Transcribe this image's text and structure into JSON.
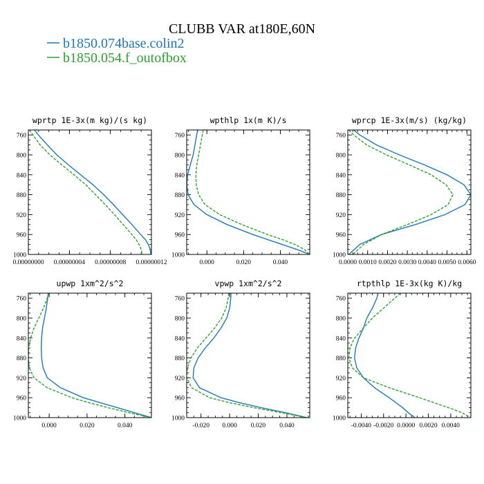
{
  "figure": {
    "title": "CLUBB VAR at180E,60N",
    "legend": [
      {
        "label": "b1850.074base.colin2",
        "color": "#1f77b4"
      },
      {
        "label": "b1850.054.f_outofbox",
        "color": "#2ca02c"
      }
    ]
  },
  "chart_data": [
    {
      "type": "line",
      "title": "wprtp  1E-3x(m kg)/(s kg)",
      "ylim": [
        1000,
        750
      ],
      "yticks": [
        760,
        800,
        840,
        880,
        920,
        960,
        1000
      ],
      "xlim": [
        0.0,
        1.2e-07
      ],
      "xticks": [
        0.0,
        4e-08,
        8e-08,
        1.2e-07
      ],
      "xtick_labels": [
        "0.00000000",
        "0.00000004",
        "0.00000008",
        "0.00000012"
      ],
      "y": [
        750,
        760,
        780,
        800,
        820,
        840,
        860,
        880,
        900,
        920,
        940,
        960,
        970,
        980,
        990,
        1000
      ],
      "series": [
        {
          "name": "b1850.074base.colin2",
          "color": "#1f77b4",
          "dash": "none",
          "x": [
            6e-09,
            9.8e-09,
            1.85e-08,
            2.78e-08,
            3.9e-08,
            5.1e-08,
            6.3e-08,
            7.35e-08,
            8.3e-08,
            9.2e-08,
            1.01e-07,
            1.095e-07,
            1.14e-07,
            1.17e-07,
            1.188e-07,
            1.195e-07
          ]
        },
        {
          "name": "b1850.054.f_outofbox",
          "color": "#2ca02c",
          "dash": "4,2",
          "x": [
            1e-09,
            4.5e-09,
            1.15e-08,
            2.1e-08,
            3.25e-08,
            4.45e-08,
            5.6e-08,
            6.55e-08,
            7.5e-08,
            8.4e-08,
            9.25e-08,
            1.01e-07,
            1.05e-07,
            1.08e-07,
            1.1e-07,
            1.108e-07
          ]
        }
      ]
    },
    {
      "type": "line",
      "title": "wpthlp  1x(m K)/s",
      "ylim": [
        1000,
        750
      ],
      "yticks": [
        760,
        800,
        840,
        880,
        920,
        960,
        1000
      ],
      "xlim": [
        -0.011,
        0.056
      ],
      "xticks": [
        0.0,
        0.02,
        0.04
      ],
      "xtick_labels": [
        "0.000",
        "0.020",
        "0.040"
      ],
      "y": [
        750,
        760,
        780,
        800,
        820,
        840,
        860,
        880,
        900,
        920,
        940,
        960,
        970,
        980,
        990,
        1000
      ],
      "series": [
        {
          "name": "b1850.074base.colin2",
          "color": "#1f77b4",
          "dash": "none",
          "x": [
            -0.005,
            -0.0056,
            -0.0065,
            -0.0075,
            -0.009,
            -0.0105,
            -0.011,
            -0.0102,
            -0.007,
            0.0,
            0.011,
            0.025,
            0.033,
            0.041,
            0.049,
            0.056
          ]
        },
        {
          "name": "b1850.054.f_outofbox",
          "color": "#2ca02c",
          "dash": "4,2",
          "x": [
            -0.002,
            -0.0025,
            -0.0035,
            -0.0045,
            -0.0055,
            -0.006,
            -0.0058,
            -0.0045,
            -0.001,
            0.007,
            0.019,
            0.033,
            0.041,
            0.048,
            0.053,
            0.056
          ]
        }
      ]
    },
    {
      "type": "line",
      "title": "wprcp  1E-3x(m/s) (kg/kg)",
      "ylim": [
        1000,
        750
      ],
      "yticks": [
        760,
        800,
        840,
        880,
        920,
        960,
        1000
      ],
      "xlim": [
        0.0,
        0.0062
      ],
      "xticks": [
        0.0,
        0.001,
        0.002,
        0.003,
        0.004,
        0.005,
        0.006
      ],
      "xtick_labels": [
        "0.0000",
        "0.0010",
        "0.0020",
        "0.0030",
        "0.0040",
        "0.0050",
        "0.0060"
      ],
      "y": [
        750,
        760,
        780,
        800,
        820,
        840,
        860,
        880,
        900,
        920,
        940,
        960,
        980,
        1000
      ],
      "series": [
        {
          "name": "b1850.074base.colin2",
          "color": "#1f77b4",
          "dash": "none",
          "x": [
            0.0003,
            0.0006,
            0.00145,
            0.0026,
            0.00385,
            0.005,
            0.00585,
            0.0062,
            0.0059,
            0.0049,
            0.0034,
            0.0017,
            0.0006,
            5e-05
          ]
        },
        {
          "name": "b1850.054.f_outofbox",
          "color": "#2ca02c",
          "dash": "4,2",
          "x": [
            5e-05,
            0.0003,
            0.00095,
            0.00195,
            0.0031,
            0.0042,
            0.00495,
            0.0053,
            0.00505,
            0.0042,
            0.003,
            0.0017,
            0.0008,
            0.00025
          ]
        }
      ]
    },
    {
      "type": "line",
      "title": "upwp  1xm^2/s^2",
      "ylim": [
        1000,
        750
      ],
      "yticks": [
        760,
        800,
        840,
        880,
        920,
        960,
        1000
      ],
      "xlim": [
        -0.011,
        0.054
      ],
      "xticks": [
        0.0,
        0.02,
        0.04
      ],
      "xtick_labels": [
        "0.000",
        "0.020",
        "0.040"
      ],
      "y": [
        750,
        760,
        780,
        800,
        820,
        840,
        860,
        880,
        900,
        920,
        940,
        960,
        970,
        980,
        990,
        1000
      ],
      "series": [
        {
          "name": "b1850.074base.colin2",
          "color": "#1f77b4",
          "dash": "none",
          "x": [
            -0.0005,
            -0.0008,
            -0.0015,
            -0.0025,
            -0.0035,
            -0.004,
            -0.0042,
            -0.004,
            -0.0032,
            -0.001,
            0.006,
            0.018,
            0.027,
            0.036,
            0.045,
            0.054
          ]
        },
        {
          "name": "b1850.054.f_outofbox",
          "color": "#2ca02c",
          "dash": "4,2",
          "x": [
            -0.0002,
            -0.001,
            -0.003,
            -0.0055,
            -0.008,
            -0.0098,
            -0.0108,
            -0.011,
            -0.0105,
            -0.008,
            -0.001,
            0.012,
            0.021,
            0.031,
            0.042,
            0.054
          ]
        }
      ]
    },
    {
      "type": "line",
      "title": "vpwp  1xm^2/s^2",
      "ylim": [
        1000,
        750
      ],
      "yticks": [
        760,
        800,
        840,
        880,
        920,
        960,
        1000
      ],
      "xlim": [
        -0.03,
        0.056
      ],
      "xticks": [
        -0.02,
        0.0,
        0.02,
        0.04
      ],
      "xtick_labels": [
        "-0.020",
        "0.000",
        "0.020",
        "0.040"
      ],
      "y": [
        750,
        760,
        780,
        800,
        820,
        840,
        860,
        880,
        900,
        920,
        940,
        960,
        970,
        980,
        990,
        1000
      ],
      "series": [
        {
          "name": "b1850.074base.colin2",
          "color": "#1f77b4",
          "dash": "none",
          "x": [
            0.001,
            0.0008,
            0.0,
            -0.002,
            -0.006,
            -0.011,
            -0.017,
            -0.022,
            -0.025,
            -0.0255,
            -0.021,
            -0.006,
            0.007,
            0.022,
            0.039,
            0.054
          ]
        },
        {
          "name": "b1850.054.f_outofbox",
          "color": "#2ca02c",
          "dash": "4,2",
          "x": [
            -0.0005,
            -0.001,
            -0.0025,
            -0.0055,
            -0.0105,
            -0.0165,
            -0.0225,
            -0.027,
            -0.0295,
            -0.03,
            -0.0265,
            -0.014,
            0.0,
            0.017,
            0.036,
            0.054
          ]
        }
      ]
    },
    {
      "type": "line",
      "title": "rtpthlp  1E-3x(kg K)/kg",
      "ylim": [
        1000,
        750
      ],
      "yticks": [
        760,
        800,
        840,
        880,
        920,
        960,
        1000
      ],
      "xlim": [
        -0.0052,
        0.0058
      ],
      "xticks": [
        -0.004,
        -0.002,
        0.0,
        0.002,
        0.004
      ],
      "xtick_labels": [
        "-0.0040",
        "-0.0020",
        "0.0000",
        "0.0020",
        "0.0040"
      ],
      "y": [
        750,
        760,
        780,
        800,
        820,
        840,
        860,
        880,
        900,
        920,
        940,
        960,
        980,
        990,
        1000
      ],
      "series": [
        {
          "name": "b1850.074base.colin2",
          "color": "#1f77b4",
          "dash": "none",
          "x": [
            -0.0025,
            -0.0026,
            -0.003,
            -0.0035,
            -0.0038,
            -0.0042,
            -0.0045,
            -0.0046,
            -0.0044,
            -0.0038,
            -0.0028,
            -0.0015,
            -0.0003,
            0.0002,
            0.0008
          ]
        },
        {
          "name": "b1850.054.f_outofbox",
          "color": "#2ca02c",
          "dash": "4,2",
          "x": [
            -0.0005,
            -0.001,
            -0.002,
            -0.003,
            -0.0038,
            -0.0046,
            -0.005,
            -0.0051,
            -0.0048,
            -0.0038,
            -0.0015,
            0.0012,
            0.0038,
            0.005,
            0.0058
          ]
        }
      ]
    }
  ]
}
